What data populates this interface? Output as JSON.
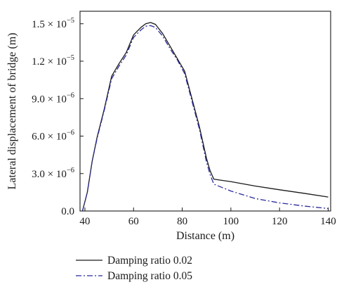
{
  "chart_data": {
    "type": "line",
    "title": "",
    "xlabel": "Distance (m)",
    "ylabel": "Lateral displacement of bridge (m)",
    "xlim": [
      38,
      141
    ],
    "ylim": [
      0,
      1.6e-05
    ],
    "x_ticks": [
      {
        "value": 40,
        "label": "40"
      },
      {
        "value": 60,
        "label": "60"
      },
      {
        "value": 80,
        "label": "80"
      },
      {
        "value": 100,
        "label": "100"
      },
      {
        "value": 120,
        "label": "120"
      },
      {
        "value": 140,
        "label": "140"
      }
    ],
    "y_ticks": [
      {
        "value": 0,
        "mantissa": "0.0",
        "times": "",
        "base": "",
        "exponent": ""
      },
      {
        "value": 3e-06,
        "mantissa": "3.0",
        "times": " × ",
        "base": "10",
        "exponent": "−6"
      },
      {
        "value": 6e-06,
        "mantissa": "6.0",
        "times": " × ",
        "base": "10",
        "exponent": "−6"
      },
      {
        "value": 9e-06,
        "mantissa": "9.0",
        "times": " × ",
        "base": "10",
        "exponent": "−6"
      },
      {
        "value": 1.2e-05,
        "mantissa": "1.2",
        "times": " × ",
        "base": "10",
        "exponent": "−5"
      },
      {
        "value": 1.5e-05,
        "mantissa": "1.5",
        "times": " × ",
        "base": "10",
        "exponent": "−5"
      }
    ],
    "legend_position": "below-left",
    "series": [
      {
        "name": "Damping ratio 0.02",
        "color": "#1a1a1a",
        "dash": "solid",
        "x": [
          39,
          41,
          43,
          45,
          48,
          51,
          54,
          57,
          60,
          63,
          65,
          67,
          69,
          72,
          75,
          78,
          81,
          84,
          87,
          90,
          91.5,
          93,
          100,
          110,
          120,
          130,
          140
        ],
        "y": [
          0,
          1.5e-06,
          4e-06,
          5.9e-06,
          8.2e-06,
          1.08e-05,
          1.18e-05,
          1.27e-05,
          1.41e-05,
          1.47e-05,
          1.5e-05,
          1.51e-05,
          1.495e-05,
          1.42e-05,
          1.32e-05,
          1.22e-05,
          1.12e-05,
          9e-06,
          6.8e-06,
          4.2e-06,
          3.2e-06,
          2.55e-06,
          2.35e-06,
          2e-06,
          1.7e-06,
          1.42e-06,
          1.12e-06
        ]
      },
      {
        "name": "Damping ratio 0.05",
        "color": "#2a2a9c",
        "dash": "dash-dot",
        "x": [
          39,
          41,
          43,
          45,
          48,
          51,
          54,
          57,
          60,
          63,
          65,
          67,
          69,
          72,
          75,
          78,
          81,
          84,
          87,
          90,
          91.5,
          93,
          100,
          110,
          120,
          130,
          140
        ],
        "y": [
          0,
          1.5e-06,
          4e-06,
          5.8e-06,
          8.1e-06,
          1.06e-05,
          1.16e-05,
          1.25e-05,
          1.39e-05,
          1.45e-05,
          1.48e-05,
          1.485e-05,
          1.47e-05,
          1.4e-05,
          1.3e-05,
          1.21e-05,
          1.1e-05,
          8.8e-06,
          6.6e-06,
          3.9e-06,
          2.9e-06,
          2.15e-06,
          1.6e-06,
          1e-06,
          6.5e-07,
          4e-07,
          2e-07
        ]
      }
    ]
  }
}
